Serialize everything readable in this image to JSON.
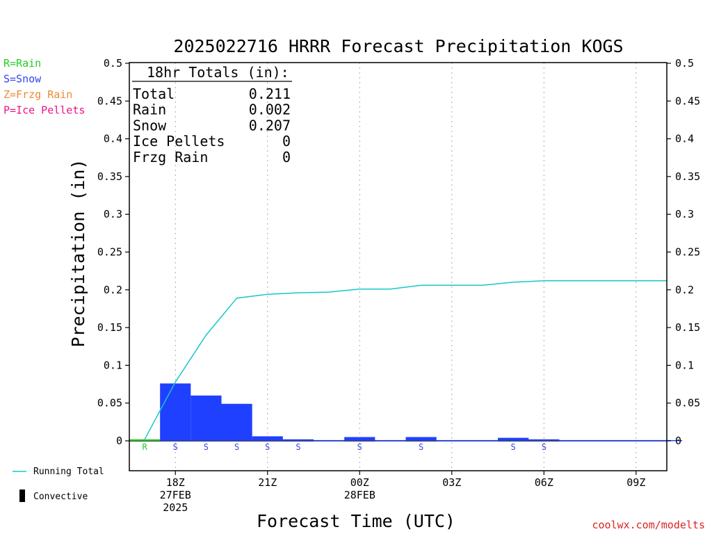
{
  "chart_data": {
    "type": "bar",
    "title": "2025022716 HRRR Forecast Precipitation KOGS",
    "xlabel": "Forecast Time (UTC)",
    "ylabel": "Precipitation (in)",
    "ylim": [
      -0.04,
      0.5
    ],
    "yticks": [
      "0.5",
      "0.45",
      "0.4",
      "0.35",
      "0.3",
      "0.25",
      "0.2",
      "0.15",
      "0.1",
      "0.05",
      "0"
    ],
    "ytick_values": [
      0.5,
      0.45,
      0.4,
      0.35,
      0.3,
      0.25,
      0.2,
      0.15,
      0.1,
      0.05,
      0
    ],
    "xlim_hours": [
      16.5,
      34.0
    ],
    "xticks": [
      {
        "hour": 18,
        "lines": [
          "18Z",
          "27FEB",
          "2025"
        ]
      },
      {
        "hour": 21,
        "lines": [
          "21Z"
        ]
      },
      {
        "hour": 24,
        "lines": [
          "00Z",
          "28FEB"
        ]
      },
      {
        "hour": 27,
        "lines": [
          "03Z"
        ]
      },
      {
        "hour": 30,
        "lines": [
          "06Z"
        ]
      },
      {
        "hour": 33,
        "lines": [
          "09Z"
        ]
      }
    ],
    "hourly_bars": [
      {
        "hour": 17,
        "value": 0.002,
        "type": "R"
      },
      {
        "hour": 18,
        "value": 0.076,
        "type": "S"
      },
      {
        "hour": 19,
        "value": 0.06,
        "type": "S"
      },
      {
        "hour": 20,
        "value": 0.049,
        "type": "S"
      },
      {
        "hour": 21,
        "value": 0.006,
        "type": "S"
      },
      {
        "hour": 22,
        "value": 0.002,
        "type": "S"
      },
      {
        "hour": 23,
        "value": 0.001,
        "type": ""
      },
      {
        "hour": 24,
        "value": 0.005,
        "type": "S"
      },
      {
        "hour": 25,
        "value": 0.001,
        "type": ""
      },
      {
        "hour": 26,
        "value": 0.005,
        "type": "S"
      },
      {
        "hour": 27,
        "value": 0.001,
        "type": ""
      },
      {
        "hour": 28,
        "value": 0.001,
        "type": ""
      },
      {
        "hour": 29,
        "value": 0.004,
        "type": "S"
      },
      {
        "hour": 30,
        "value": 0.002,
        "type": "S"
      },
      {
        "hour": 31,
        "value": 0.001,
        "type": ""
      },
      {
        "hour": 32,
        "value": 0.001,
        "type": ""
      },
      {
        "hour": 33,
        "value": 0.001,
        "type": ""
      },
      {
        "hour": 34,
        "value": 0.001,
        "type": ""
      }
    ],
    "running_total": {
      "name": "Running Total",
      "points": [
        [
          17.0,
          0.002
        ],
        [
          18.0,
          0.078
        ],
        [
          19.0,
          0.14
        ],
        [
          20.0,
          0.189
        ],
        [
          21.0,
          0.194
        ],
        [
          22.0,
          0.196
        ],
        [
          23.0,
          0.197
        ],
        [
          24.0,
          0.201
        ],
        [
          25.0,
          0.201
        ],
        [
          26.0,
          0.206
        ],
        [
          27.0,
          0.206
        ],
        [
          28.0,
          0.206
        ],
        [
          29.0,
          0.21
        ],
        [
          30.0,
          0.212
        ],
        [
          31.0,
          0.212
        ],
        [
          32.0,
          0.212
        ],
        [
          33.0,
          0.212
        ],
        [
          34.0,
          0.212
        ]
      ]
    },
    "totals_box": {
      "header": "18hr Totals (in):",
      "rows": [
        {
          "label": "Total",
          "value": "0.211"
        },
        {
          "label": "Rain",
          "value": "0.002"
        },
        {
          "label": "Snow",
          "value": "0.207"
        },
        {
          "label": "Ice Pellets",
          "value": "0"
        },
        {
          "label": "Frzg Rain",
          "value": "0"
        }
      ]
    },
    "ptype_legend": [
      {
        "text": "R=Rain",
        "color": "#22cc22"
      },
      {
        "text": "S=Snow",
        "color": "#3344ee"
      },
      {
        "text": "Z=Frzg Rain",
        "color": "#ee8833"
      },
      {
        "text": "P=Ice Pellets",
        "color": "#ee1188"
      }
    ],
    "bottom_legend": {
      "running_total": "Running Total",
      "convective": "Convective"
    },
    "credit": "coolwx.com/modelts",
    "colors": {
      "snow": "#2040ff",
      "rain": "#22cc22",
      "running_total": "#14c8c8",
      "snow_label": "#3344ee",
      "rain_label": "#22cc22",
      "credit": "#dd2222",
      "grid": "#aaaaaa"
    }
  }
}
